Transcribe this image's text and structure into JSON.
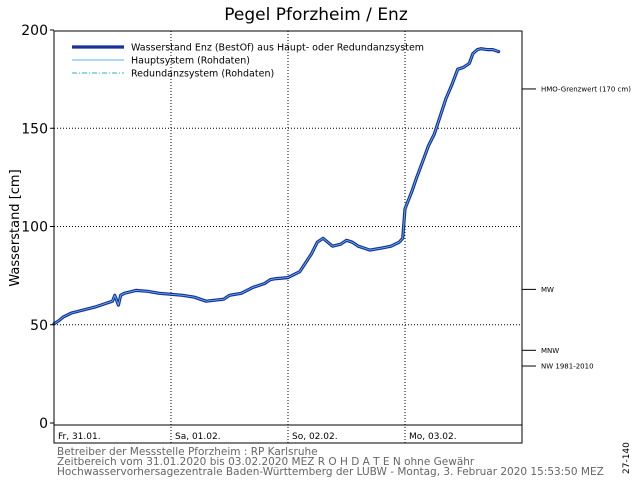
{
  "chart_data": {
    "type": "line",
    "title": "Pegel Pforzheim / Enz",
    "ylabel": "Wasserstand [cm]",
    "xlabel": "",
    "ylim": [
      0,
      200
    ],
    "yticks": [
      0,
      50,
      100,
      150,
      200
    ],
    "xlim": [
      0,
      4
    ],
    "days": [
      {
        "x": 0,
        "label": "Fr, 31.01."
      },
      {
        "x": 1,
        "label": "Sa, 01.02."
      },
      {
        "x": 2,
        "label": "So, 02.02."
      },
      {
        "x": 3,
        "label": "Mo, 03.02."
      }
    ],
    "grid": true,
    "legend_position": "top-left",
    "series": [
      {
        "name": "Wasserstand Enz  (BestOf)  aus Haupt- oder Redundanzsystem",
        "color": "#1a2f9a",
        "style": "thick",
        "x": [
          0,
          0.04,
          0.08,
          0.15,
          0.25,
          0.35,
          0.45,
          0.5,
          0.52,
          0.55,
          0.57,
          0.6,
          0.7,
          0.8,
          0.9,
          1.0,
          1.1,
          1.2,
          1.3,
          1.45,
          1.5,
          1.6,
          1.7,
          1.8,
          1.85,
          1.9,
          2.0,
          2.1,
          2.2,
          2.25,
          2.3,
          2.38,
          2.45,
          2.5,
          2.55,
          2.6,
          2.65,
          2.7,
          2.8,
          2.88,
          2.95,
          2.98,
          3.0,
          3.02,
          3.06,
          3.1,
          3.15,
          3.2,
          3.25,
          3.3,
          3.35,
          3.4,
          3.45,
          3.5,
          3.55,
          3.58,
          3.6,
          3.62,
          3.65,
          3.7,
          3.75,
          3.8
        ],
        "y": [
          50.5,
          52,
          54,
          56,
          57.5,
          59,
          61,
          62,
          65,
          60,
          65,
          66,
          67.5,
          67,
          66,
          65.5,
          65,
          64,
          62,
          63,
          65,
          66,
          69,
          71,
          73,
          73.5,
          74,
          77,
          86,
          92,
          94,
          90,
          91,
          93,
          92,
          90,
          89,
          88,
          89,
          90,
          92,
          94,
          109,
          112,
          118,
          125,
          133,
          141,
          147,
          156,
          165,
          172,
          180,
          181,
          183,
          188,
          189,
          190,
          190.5,
          190,
          190,
          189
        ]
      },
      {
        "name": "Hauptsystem (Rohdaten)",
        "color": "#5ab4e6",
        "style": "thin"
      },
      {
        "name": "Redundanzsystem (Rohdaten)",
        "color": "#2ab0c8",
        "style": "dashdot"
      }
    ],
    "reference_levels": [
      {
        "label": "HMO-Grenzwert (170 cm)",
        "y": 170
      },
      {
        "label": "MW",
        "y": 68
      },
      {
        "label": "MNW",
        "y": 37
      },
      {
        "label": "NW 1981-2010",
        "y": 29
      }
    ]
  },
  "footer": {
    "line1": "Betreiber der Messstelle Pforzheim : RP Karlsruhe",
    "line2": "Zeitbereich vom 31.01.2020 bis 03.02.2020    MEZ      R O H D A T E N  ohne Gewähr",
    "line3": "Hochwasservorhersagezentrale Baden-Württemberg der LUBW - Montag, 3. Februar 2020 15:53:50 MEZ"
  },
  "side_code": "27-140"
}
